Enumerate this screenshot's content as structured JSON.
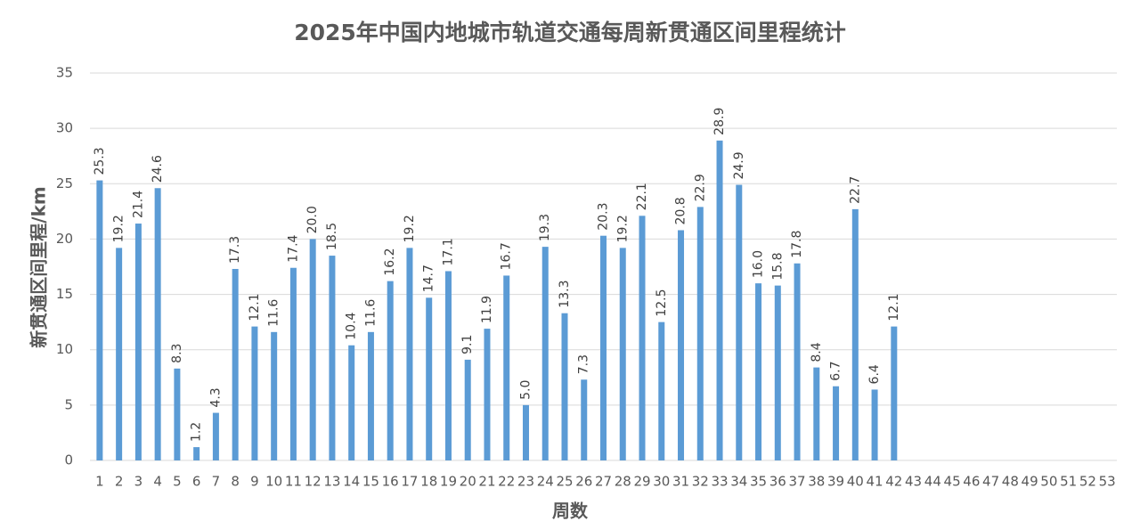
{
  "chart_data": {
    "type": "bar",
    "title": "2025年中国内地城市轨道交通每周新贯通区间里程统计",
    "x_label": "周数",
    "y_label": "新贯通区间里程/km",
    "categories": [
      "1",
      "2",
      "3",
      "4",
      "5",
      "6",
      "7",
      "8",
      "9",
      "10",
      "11",
      "12",
      "13",
      "14",
      "15",
      "16",
      "17",
      "18",
      "19",
      "20",
      "21",
      "22",
      "23",
      "24",
      "25",
      "26",
      "27",
      "28",
      "29",
      "30",
      "31",
      "32",
      "33",
      "34",
      "35",
      "36",
      "37",
      "38",
      "39",
      "40",
      "41",
      "42",
      "43",
      "44",
      "45",
      "46",
      "47",
      "48",
      "49",
      "50",
      "51",
      "52",
      "53"
    ],
    "values": [
      25.3,
      19.2,
      21.4,
      24.6,
      8.3,
      1.2,
      4.3,
      17.3,
      12.1,
      11.6,
      17.4,
      20.0,
      18.5,
      10.4,
      11.6,
      16.2,
      19.2,
      14.7,
      17.1,
      9.1,
      11.9,
      16.7,
      5.0,
      19.3,
      13.3,
      7.3,
      20.3,
      19.2,
      22.1,
      12.5,
      20.8,
      22.9,
      28.9,
      24.9,
      16.0,
      15.8,
      17.8,
      8.4,
      6.7,
      22.7,
      6.4,
      12.1,
      null,
      null,
      null,
      null,
      null,
      null,
      null,
      null,
      null,
      null,
      null
    ],
    "value_labels": [
      "25.3",
      "19.2",
      "21.4",
      "24.6",
      "8.3",
      "1.2",
      "4.3",
      "17.3",
      "12.1",
      "11.6",
      "17.4",
      "20.0",
      "18.5",
      "10.4",
      "11.6",
      "16.2",
      "19.2",
      "14.7",
      "17.1",
      "9.1",
      "11.9",
      "16.7",
      "5.0",
      "19.3",
      "13.3",
      "7.3",
      "20.3",
      "19.2",
      "22.1",
      "12.5",
      "20.8",
      "22.9",
      "28.9",
      "24.9",
      "16.0",
      "15.8",
      "17.8",
      "8.4",
      "6.7",
      "22.7",
      "6.4",
      "12.1",
      null,
      null,
      null,
      null,
      null,
      null,
      null,
      null,
      null,
      null,
      null
    ],
    "color": "#5b9bd5",
    "ylim": [
      0,
      35
    ],
    "yticks": [
      0,
      5,
      10,
      15,
      20,
      25,
      30,
      35
    ],
    "grid": true
  }
}
